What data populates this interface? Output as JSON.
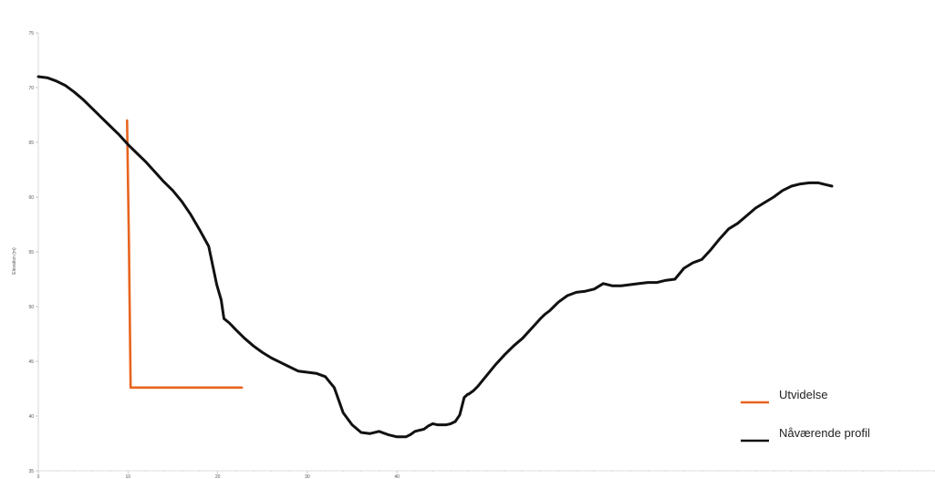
{
  "chart_data": {
    "type": "line",
    "title": "",
    "xlabel": "",
    "ylabel": "Elevation (m)",
    "xlim": [
      0,
      100
    ],
    "ylim": [
      35,
      75
    ],
    "x_ticks": [
      0,
      10,
      20,
      30,
      40
    ],
    "y_ticks": [
      35,
      40,
      45,
      50,
      55,
      60,
      65,
      70,
      75
    ],
    "grid": false,
    "legend_position": "bottom-right",
    "series": [
      {
        "name": "Utvidelse",
        "color": "#e8641e",
        "x": [
          9.9,
          10.1,
          10.3,
          15.0,
          22.7
        ],
        "y": [
          67.0,
          56.0,
          42.6,
          42.6,
          42.6
        ]
      },
      {
        "name": "Nåværende profil",
        "color": "#111111",
        "x": [
          0.0,
          1.0,
          2.0,
          3.0,
          4.0,
          5.0,
          6.0,
          7.0,
          8.0,
          9.0,
          10.0,
          11.0,
          12.0,
          13.0,
          14.0,
          15.0,
          16.0,
          17.0,
          18.0,
          19.0,
          19.9,
          20.4,
          20.7,
          21.3,
          22.0,
          23.0,
          24.0,
          25.0,
          26.0,
          27.0,
          28.0,
          29.0,
          30.0,
          31.0,
          32.0,
          33.0,
          34.0,
          35.0,
          36.0,
          37.0,
          38.0,
          39.0,
          40.0,
          41.0,
          41.5,
          42.0,
          42.5,
          43.0,
          43.5,
          44.0,
          44.5,
          45.0,
          45.5,
          46.0,
          46.5,
          47.0,
          47.5,
          47.9,
          48.0,
          48.5,
          49.0,
          50.0,
          51.0,
          52.0,
          53.0,
          54.0,
          55.0,
          56.0,
          56.5,
          57.0,
          57.5,
          58.0,
          59.0,
          60.0,
          61.0,
          62.0,
          63.0,
          64.0,
          65.0,
          66.0,
          67.0,
          68.0,
          69.0,
          70.0,
          71.0,
          72.0,
          73.0,
          74.0,
          75.0,
          76.0,
          77.0,
          78.0,
          79.0,
          80.0,
          81.0,
          82.0,
          83.0,
          84.0,
          85.0,
          86.0,
          87.0,
          88.0,
          88.5
        ],
        "y": [
          71.0,
          70.9,
          70.6,
          70.2,
          69.6,
          68.9,
          68.1,
          67.3,
          66.5,
          65.7,
          64.8,
          64.0,
          63.2,
          62.3,
          61.4,
          60.6,
          59.6,
          58.4,
          57.0,
          55.5,
          52.0,
          50.6,
          48.9,
          48.5,
          47.9,
          47.1,
          46.4,
          45.8,
          45.3,
          44.9,
          44.5,
          44.1,
          44.0,
          43.9,
          43.6,
          42.6,
          40.3,
          39.2,
          38.5,
          38.4,
          38.6,
          38.3,
          38.1,
          38.1,
          38.3,
          38.6,
          38.7,
          38.8,
          39.1,
          39.3,
          39.2,
          39.2,
          39.2,
          39.3,
          39.5,
          40.1,
          41.7,
          42.0,
          42.0,
          42.3,
          42.7,
          43.7,
          44.7,
          45.6,
          46.4,
          47.1,
          48.0,
          48.9,
          49.3,
          49.6,
          50.0,
          50.4,
          51.0,
          51.3,
          51.4,
          51.6,
          52.1,
          51.9,
          51.9,
          52.0,
          52.1,
          52.2,
          52.2,
          52.4,
          52.5,
          53.5,
          54.0,
          54.3,
          55.2,
          56.2,
          57.1,
          57.6,
          58.3,
          59.0,
          59.5,
          60.0,
          60.6,
          61.0,
          61.2,
          61.3,
          61.3,
          61.1,
          61.0
        ]
      }
    ]
  }
}
